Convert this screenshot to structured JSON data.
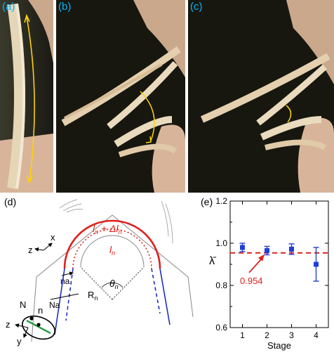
{
  "photos": {
    "a": {
      "label": "(a)"
    },
    "b": {
      "label": "(b)"
    },
    "c": {
      "label": "(c)"
    }
  },
  "diagram": {
    "label": "(d)",
    "outer_length": "l",
    "outer_length_sub": "n",
    "outer_delta": " + Δl",
    "outer_delta_sub": "n",
    "inner_length": "l",
    "inner_length_sub": "n",
    "angle": "θ",
    "angle_sub": "n",
    "radius": "R",
    "radius_sub": "n",
    "offset_small": "na",
    "offset_large": "Na",
    "axis_x": "x",
    "axis_z_top": "z",
    "axis_z_bottom": "z",
    "axis_y": "y",
    "label_N": "N",
    "label_n": "n",
    "colors": {
      "red": "#e0201b",
      "blue": "#1f2fbf",
      "green": "#1a9a3a"
    }
  },
  "chart_data": {
    "type": "scatter",
    "label": "(e)",
    "xlabel": "Stage",
    "ylabel": "λ̄",
    "xlim": [
      0.5,
      4.5
    ],
    "ylim": [
      0.6,
      1.2
    ],
    "xticks": [
      "1",
      "2",
      "3",
      "4"
    ],
    "yticks": [
      "0.6",
      "0.8",
      "1.0",
      "1.2"
    ],
    "points": [
      {
        "x": 1,
        "y": 0.98,
        "err": 0.02
      },
      {
        "x": 2,
        "y": 0.965,
        "err": 0.02
      },
      {
        "x": 3,
        "y": 0.972,
        "err": 0.025
      },
      {
        "x": 4,
        "y": 0.9,
        "err": 0.08
      }
    ],
    "reference_line": {
      "y": 0.954,
      "label": "0.954"
    },
    "marker_color": "#1f3fd6",
    "line_color": "#e0201b",
    "errorbar_color": "#1f3fd6"
  }
}
